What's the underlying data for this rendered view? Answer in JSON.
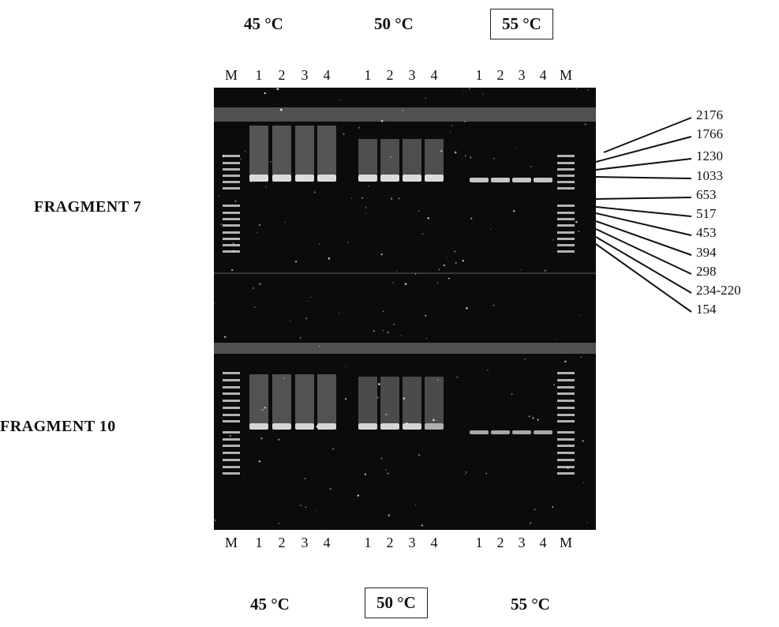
{
  "top_temperatures": [
    {
      "label": "45 °C",
      "boxed": false
    },
    {
      "label": "50 °C",
      "boxed": false
    },
    {
      "label": "55 °C",
      "boxed": true
    }
  ],
  "bottom_temperatures": [
    {
      "label": "45 °C",
      "boxed": false
    },
    {
      "label": "50 °C",
      "boxed": true
    },
    {
      "label": "55 °C",
      "boxed": false
    }
  ],
  "lane_labels": [
    "M",
    "1",
    "2",
    "3",
    "4",
    "1",
    "2",
    "3",
    "4",
    "1",
    "2",
    "3",
    "4",
    "M"
  ],
  "fragments": [
    {
      "label": "FRAGMENT 7"
    },
    {
      "label": "FRAGMENT 10"
    }
  ],
  "marker_sizes": [
    "2176",
    "1766",
    "1230",
    "1033",
    "653",
    "517",
    "453",
    "394",
    "298",
    "234-220",
    "154"
  ],
  "colors": {
    "gel_background": "#0b0b0b",
    "band": "#e8e8e8",
    "well": "#8a8a8a"
  }
}
